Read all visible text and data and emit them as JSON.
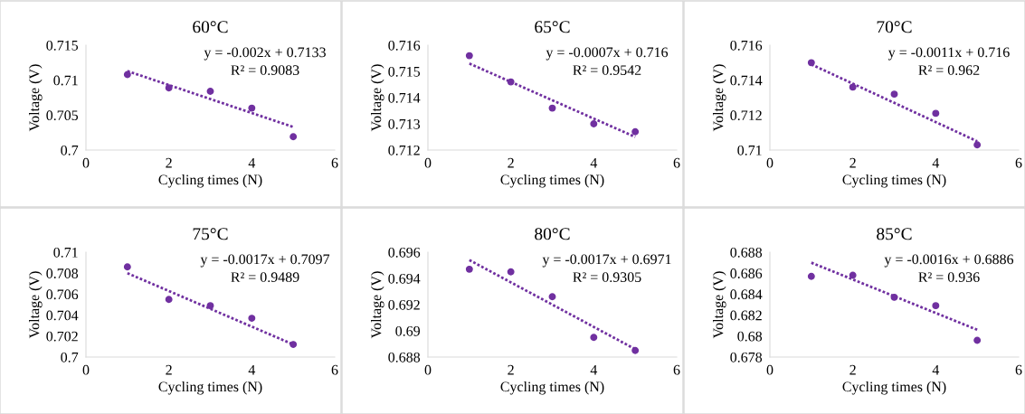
{
  "chart_data": [
    {
      "type": "scatter",
      "title": "60°C",
      "xlabel": "Cycling times (N)",
      "ylabel": "Voltage (V)",
      "xlim": [
        0,
        6
      ],
      "xticks": [
        0,
        2,
        4,
        6
      ],
      "ylim": [
        0.7,
        0.715
      ],
      "yticks": [
        0.7,
        0.705,
        0.71,
        0.715
      ],
      "annotations": [
        "y = -0.002x + 0.7133",
        "R² = 0.9083"
      ],
      "series": [
        {
          "color": "#7030a0",
          "marker": "circle",
          "x": [
            1,
            2,
            3,
            4,
            5
          ],
          "values": [
            0.7108,
            0.7089,
            0.7084,
            0.706,
            0.7019
          ]
        },
        {
          "type": "line",
          "color": "#7030a0",
          "line_style": "dotted",
          "marker": "none",
          "x": [
            1,
            5
          ],
          "values": [
            0.7113,
            0.7033
          ]
        }
      ]
    },
    {
      "type": "scatter",
      "title": "65°C",
      "xlabel": "Cycling times (N)",
      "ylabel": "Voltage (V)",
      "xlim": [
        0,
        6
      ],
      "xticks": [
        0,
        2,
        4,
        6
      ],
      "ylim": [
        0.712,
        0.716
      ],
      "yticks": [
        0.712,
        0.713,
        0.714,
        0.715,
        0.716
      ],
      "annotations": [
        "y = -0.0007x + 0.716",
        "R² = 0.9542"
      ],
      "series": [
        {
          "color": "#7030a0",
          "marker": "circle",
          "x": [
            1,
            2,
            3,
            4,
            5
          ],
          "values": [
            0.7156,
            0.7146,
            0.7136,
            0.713,
            0.7127
          ]
        },
        {
          "type": "line",
          "color": "#7030a0",
          "line_style": "dotted",
          "marker": "none",
          "x": [
            1,
            5
          ],
          "values": [
            0.7153,
            0.7125
          ]
        }
      ]
    },
    {
      "type": "scatter",
      "title": "70°C",
      "xlabel": "Cycling times (N)",
      "ylabel": "Voltage (V)",
      "xlim": [
        0,
        6
      ],
      "xticks": [
        0,
        2,
        4,
        6
      ],
      "ylim": [
        0.71,
        0.716
      ],
      "yticks": [
        0.71,
        0.712,
        0.714,
        0.716
      ],
      "annotations": [
        "y = -0.0011x + 0.716",
        "R² = 0.962"
      ],
      "series": [
        {
          "color": "#7030a0",
          "marker": "circle",
          "x": [
            1,
            2,
            3,
            4,
            5
          ],
          "values": [
            0.715,
            0.7136,
            0.7132,
            0.7121,
            0.7103
          ]
        },
        {
          "type": "line",
          "color": "#7030a0",
          "line_style": "dotted",
          "marker": "none",
          "x": [
            1,
            5
          ],
          "values": [
            0.7149,
            0.7105
          ]
        }
      ]
    },
    {
      "type": "scatter",
      "title": "75°C",
      "xlabel": "Cycling times (N)",
      "ylabel": "Voltage (V)",
      "xlim": [
        0,
        6
      ],
      "xticks": [
        0,
        2,
        4,
        6
      ],
      "ylim": [
        0.7,
        0.71
      ],
      "yticks": [
        0.7,
        0.702,
        0.704,
        0.706,
        0.708,
        0.71
      ],
      "annotations": [
        "y = -0.0017x + 0.7097",
        "R² = 0.9489"
      ],
      "series": [
        {
          "color": "#7030a0",
          "marker": "circle",
          "x": [
            1,
            2,
            3,
            4,
            5
          ],
          "values": [
            0.7086,
            0.7055,
            0.7049,
            0.7037,
            0.7012
          ]
        },
        {
          "type": "line",
          "color": "#7030a0",
          "line_style": "dotted",
          "marker": "none",
          "x": [
            1,
            5
          ],
          "values": [
            0.708,
            0.7012
          ]
        }
      ]
    },
    {
      "type": "scatter",
      "title": "80°C",
      "xlabel": "Cycling times (N)",
      "ylabel": "Voltage (V)",
      "xlim": [
        0,
        6
      ],
      "xticks": [
        0,
        2,
        4,
        6
      ],
      "ylim": [
        0.688,
        0.696
      ],
      "yticks": [
        0.688,
        0.69,
        0.692,
        0.694,
        0.696
      ],
      "annotations": [
        "y = -0.0017x + 0.6971",
        "R² = 0.9305"
      ],
      "series": [
        {
          "color": "#7030a0",
          "marker": "circle",
          "x": [
            1,
            2,
            3,
            4,
            5
          ],
          "values": [
            0.6947,
            0.6945,
            0.6926,
            0.6895,
            0.6885
          ]
        },
        {
          "type": "line",
          "color": "#7030a0",
          "line_style": "dotted",
          "marker": "none",
          "x": [
            1,
            5
          ],
          "values": [
            0.6954,
            0.6886
          ]
        }
      ]
    },
    {
      "type": "scatter",
      "title": "85°C",
      "xlabel": "Cycling times (N)",
      "ylabel": "Voltage (V)",
      "xlim": [
        0,
        6
      ],
      "xticks": [
        0,
        2,
        4,
        6
      ],
      "ylim": [
        0.678,
        0.688
      ],
      "yticks": [
        0.678,
        0.68,
        0.682,
        0.684,
        0.686,
        0.688
      ],
      "annotations": [
        "y = -0.0016x + 0.6886",
        "R² = 0.936"
      ],
      "series": [
        {
          "color": "#7030a0",
          "marker": "circle",
          "x": [
            1,
            2,
            3,
            4,
            5
          ],
          "values": [
            0.6857,
            0.6858,
            0.6837,
            0.6829,
            0.6796
          ]
        },
        {
          "type": "line",
          "color": "#7030a0",
          "line_style": "dotted",
          "marker": "none",
          "x": [
            1,
            5
          ],
          "values": [
            0.687,
            0.6806
          ]
        }
      ]
    }
  ]
}
